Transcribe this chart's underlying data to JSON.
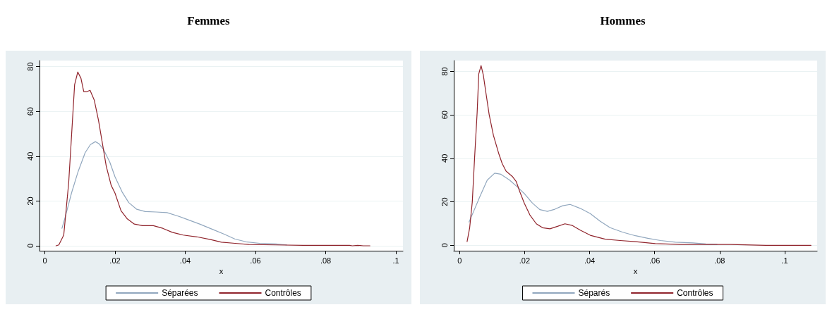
{
  "chart_data": [
    {
      "type": "line",
      "title": "Femmes",
      "xlabel": "x",
      "xlim": [
        -0.0015,
        0.102
      ],
      "ylim": [
        -2.2,
        82.7
      ],
      "xticks": [
        0,
        {
          "value": 0.02,
          "label": ".02"
        },
        {
          "value": 0.04,
          "label": ".04"
        },
        {
          "value": 0.06,
          "label": ".06"
        },
        {
          "value": 0.08,
          "label": ".08"
        },
        {
          "value": 0.1,
          "label": ".1"
        }
      ],
      "yticks": [
        0,
        20,
        40,
        60,
        80
      ],
      "grid": "y",
      "legend": "bottom",
      "marker": "none",
      "line_style": "solid",
      "series": [
        {
          "name": "Séparées",
          "color": "#91a7be",
          "x": [
            0.0049,
            0.006,
            0.0076,
            0.0095,
            0.0115,
            0.013,
            0.0144,
            0.0155,
            0.0168,
            0.0185,
            0.02,
            0.022,
            0.0239,
            0.0262,
            0.0286,
            0.0317,
            0.0348,
            0.0379,
            0.041,
            0.0441,
            0.048,
            0.0511,
            0.0542,
            0.0573,
            0.0612,
            0.0658,
            0.0689
          ],
          "values": [
            7.8,
            13.9,
            23.5,
            33.2,
            41.6,
            45.2,
            46.5,
            45.5,
            42.8,
            37.4,
            30.8,
            24.1,
            19.3,
            16.3,
            15.3,
            15.1,
            14.8,
            13.3,
            11.5,
            9.7,
            7.2,
            5.2,
            3,
            1.8,
            1.1,
            0.8,
            0.4
          ]
        },
        {
          "name": "Contrôles",
          "color": "#90242c",
          "x": [
            0.0032,
            0.004,
            0.0054,
            0.0068,
            0.0075,
            0.0085,
            0.0094,
            0.0103,
            0.0111,
            0.0119,
            0.0129,
            0.0141,
            0.0153,
            0.0162,
            0.0175,
            0.0189,
            0.02,
            0.0217,
            0.0235,
            0.0255,
            0.0278,
            0.0309,
            0.0336,
            0.0363,
            0.0394,
            0.0433,
            0.0472,
            0.0503,
            0.0542,
            0.0581,
            0.0658,
            0.0736,
            0.0868,
            0.0876,
            0.0891,
            0.0907,
            0.0926
          ],
          "values": [
            0,
            0.4,
            4.8,
            28,
            46,
            72,
            77.6,
            74.8,
            68.8,
            68.8,
            69.4,
            65,
            56,
            47.7,
            35.6,
            27,
            23.5,
            15.7,
            12,
            9.7,
            9,
            9,
            7.8,
            6,
            4.8,
            4,
            2.8,
            1.6,
            1.1,
            0.6,
            0.4,
            0.2,
            0.2,
            0,
            0.2,
            0,
            0
          ]
        }
      ]
    },
    {
      "type": "line",
      "title": "Hommes",
      "xlabel": "x",
      "xlim": [
        -0.0018,
        0.11
      ],
      "ylim": [
        -2.5,
        85
      ],
      "xticks": [
        0,
        {
          "value": 0.02,
          "label": ".02"
        },
        {
          "value": 0.04,
          "label": ".04"
        },
        {
          "value": 0.06,
          "label": ".06"
        },
        {
          "value": 0.08,
          "label": ".08"
        },
        {
          "value": 0.1,
          "label": ".1"
        }
      ],
      "yticks": [
        0,
        20,
        40,
        60,
        80
      ],
      "grid": "y",
      "legend": "bottom",
      "marker": "none",
      "line_style": "solid",
      "series": [
        {
          "name": "Séparés",
          "color": "#91a7be",
          "x": [
            0.0029,
            0.0042,
            0.0062,
            0.0085,
            0.0108,
            0.0127,
            0.0154,
            0.0181,
            0.0201,
            0.0224,
            0.0247,
            0.027,
            0.0293,
            0.0317,
            0.034,
            0.0371,
            0.0402,
            0.0432,
            0.0463,
            0.0502,
            0.0541,
            0.0579,
            0.0618,
            0.0664,
            0.0718,
            0.0757,
            0.0792
          ],
          "values": [
            10.7,
            15.2,
            22.3,
            30,
            33.2,
            32.7,
            30,
            26.4,
            23.5,
            19.4,
            16.4,
            15.6,
            16.6,
            18.2,
            18.8,
            17,
            14.6,
            11.1,
            8.1,
            6,
            4.4,
            3.2,
            2.2,
            1.4,
            1.1,
            0.6,
            0.5
          ]
        },
        {
          "name": "Contrôles",
          "color": "#90242c",
          "x": [
            0.0023,
            0.0031,
            0.0039,
            0.0046,
            0.0054,
            0.0059,
            0.0066,
            0.0073,
            0.0081,
            0.0091,
            0.0104,
            0.012,
            0.0131,
            0.0143,
            0.0162,
            0.0174,
            0.0185,
            0.0199,
            0.0216,
            0.0236,
            0.0255,
            0.0278,
            0.0301,
            0.0324,
            0.0347,
            0.0371,
            0.0402,
            0.0448,
            0.0494,
            0.0541,
            0.0602,
            0.068,
            0.0834,
            0.0942,
            0.1081
          ],
          "values": [
            1.7,
            8.1,
            19.9,
            40,
            61.2,
            78.9,
            82.7,
            78.3,
            70.1,
            60.1,
            50.6,
            42.4,
            37.6,
            34.1,
            31.7,
            29.4,
            24.7,
            19.4,
            14,
            9.9,
            8.1,
            7.6,
            8.7,
            9.9,
            9.1,
            7,
            4.6,
            2.8,
            2.2,
            1.7,
            0.8,
            0.4,
            0.4,
            0,
            0
          ]
        }
      ]
    }
  ]
}
